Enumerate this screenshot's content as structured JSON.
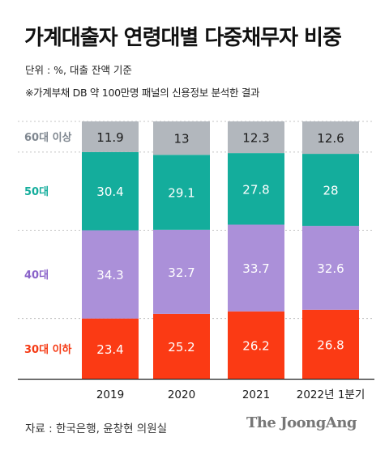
{
  "title": "가계대출자 연령대별 다중채무자 비중",
  "unit_note": "단위 : %, 대출 잔액 기준",
  "source_note": "※가계부채 DB 약 100만명 패널의 신용정보 분석한 결과",
  "footer": {
    "source": "자료 : 한국은행, 윤창현 의원실",
    "brand": "The JoongAng"
  },
  "colors": {
    "60대 이상": "#b2b7bd",
    "50대": "#14ad9c",
    "40대": "#ab90d9",
    "30대 이하": "#fb3a14"
  },
  "label_colors": {
    "60대 이상": "#7f8790",
    "50대": "#14ad9c",
    "40대": "#8a63c9",
    "30대 이하": "#f53a14"
  },
  "chart_data": {
    "type": "bar",
    "stacked": true,
    "categories": [
      "2019",
      "2020",
      "2021",
      "2022년 1분기"
    ],
    "series": [
      {
        "name": "30대 이하",
        "values": [
          23.4,
          25.2,
          26.2,
          26.8
        ]
      },
      {
        "name": "40대",
        "values": [
          34.3,
          32.7,
          33.7,
          32.6
        ]
      },
      {
        "name": "50대",
        "values": [
          30.4,
          29.1,
          27.8,
          28
        ]
      },
      {
        "name": "60대 이상",
        "values": [
          11.9,
          13,
          12.3,
          12.6
        ]
      }
    ],
    "gridlines": "dotted",
    "legend": "left"
  }
}
